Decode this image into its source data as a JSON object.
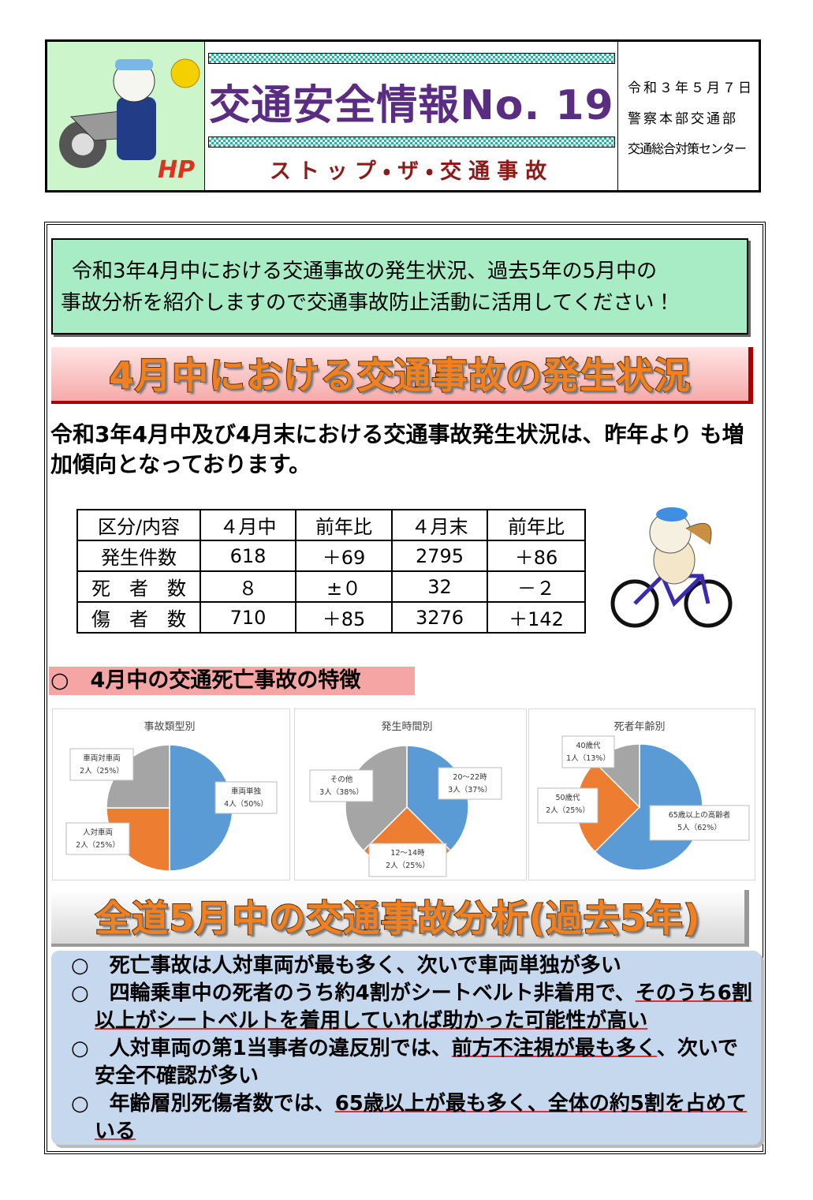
{
  "header": {
    "title": "交通安全情報No. 19",
    "subtitle": "ストップ・ザ・交通事故",
    "date": "令和３年５月７日",
    "department": "警察本部交通部",
    "center": "交通総合対策センター"
  },
  "intro": [
    "令和3年4月中における交通事故の発生状況、過去5年の5月中の",
    "事故分析を紹介しますので交通事故防止活動に活用してください！"
  ],
  "section1": {
    "title": "4月中における交通事故の発生状況",
    "text": "令和3年4月中及び4月末における交通事故発生状況は、昨年より も増加傾向となっております。",
    "table": {
      "header": [
        "区分/内容",
        "４月中",
        "前年比",
        "４月末",
        "前年比"
      ],
      "rows": [
        [
          "発生件数",
          "618",
          "＋69",
          "2795",
          "＋86"
        ],
        [
          "死　者　数",
          "８",
          "±０",
          "32",
          "－２"
        ],
        [
          "傷　者　数",
          "710",
          "＋85",
          "3276",
          "＋142"
        ]
      ]
    },
    "subheading": "○　4月中の交通死亡事故の特徴"
  },
  "chart_data": [
    {
      "type": "pie",
      "title": "事故類型別",
      "categories": [
        "車両単独",
        "人対車両",
        "車両対車両"
      ],
      "values": [
        4,
        2,
        2
      ],
      "value_labels": [
        "4人（50%）",
        "2人（25%）",
        "2人（25%）"
      ],
      "colors": [
        "#5b9bd5",
        "#ed7d31",
        "#a5a5a5"
      ]
    },
    {
      "type": "pie",
      "title": "発生時間別",
      "categories": [
        "20～22時",
        "12～14時",
        "その他"
      ],
      "values": [
        3,
        2,
        3
      ],
      "value_labels": [
        "3人（37%）",
        "2人（25%）",
        "3人（38%）"
      ],
      "colors": [
        "#5b9bd5",
        "#ed7d31",
        "#a5a5a5"
      ]
    },
    {
      "type": "pie",
      "title": "死者年齢別",
      "categories": [
        "65歳以上の高齢者",
        "50歳代",
        "40歳代"
      ],
      "values": [
        5,
        2,
        1
      ],
      "value_labels": [
        "5人（62%）",
        "2人（25%）",
        "1人（13%）"
      ],
      "colors": [
        "#5b9bd5",
        "#ed7d31",
        "#a5a5a5"
      ]
    }
  ],
  "section2": {
    "title": "全道5月中の交通事故分析(過去5年)",
    "bullets": [
      [
        {
          "text": "○　死亡事故は人対車両が最も多く、次いで車両単独が多い",
          "underline": false
        }
      ],
      [
        {
          "text": "○　四輪乗車中の死者のうち約4割がシートベルト非着用で、",
          "underline": false
        },
        {
          "text": "そのうち6割以上がシートベルトを着用していれば助かった可能性が高い",
          "underline": true
        }
      ],
      [
        {
          "text": "○　人対車両の第1当事者の違反別では、",
          "underline": false
        },
        {
          "text": "前方不注視が最も多く",
          "underline": true
        },
        {
          "text": "、次いで安全不確認が多い",
          "underline": false
        }
      ],
      [
        {
          "text": "○　年齢層別死傷者数では、",
          "underline": false
        },
        {
          "text": "65歳以上が最も多く、全体の約5割を占めている",
          "underline": true
        }
      ]
    ]
  }
}
